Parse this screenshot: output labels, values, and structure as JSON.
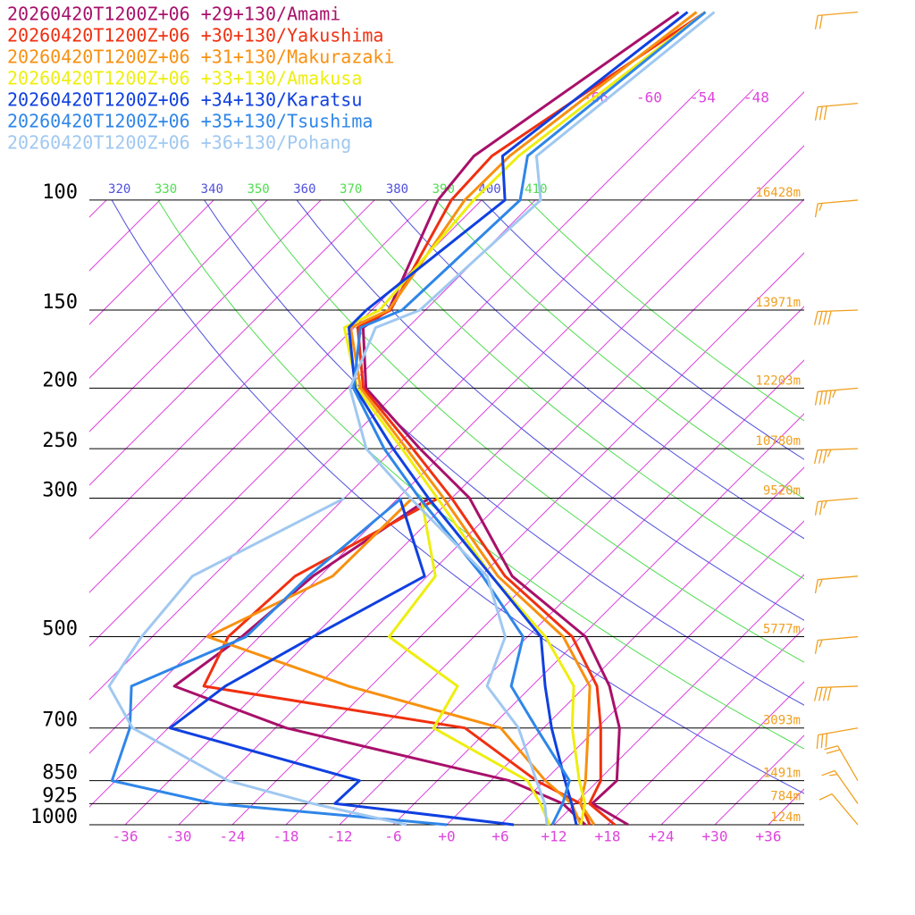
{
  "chart_data": {
    "type": "skewt",
    "pressure_ticks": [
      100,
      150,
      200,
      250,
      300,
      500,
      700,
      850,
      925,
      1000
    ],
    "height_labels": [
      "16428m",
      "13971m",
      "12203m",
      "10780m",
      "9520m",
      "5777m",
      "3093m",
      "1491m",
      "784m",
      "124m"
    ],
    "height_color": "#f0a020",
    "xticks": [
      -36,
      -30,
      -24,
      -18,
      -12,
      -6,
      {
        "value": 0,
        "label": "+0"
      },
      {
        "value": 6,
        "label": "+6"
      },
      {
        "value": 12,
        "label": "+12"
      },
      {
        "value": 18,
        "label": "+18"
      },
      {
        "value": 24,
        "label": "+24"
      },
      {
        "value": 30,
        "label": "+30"
      },
      {
        "value": 36,
        "label": "+36"
      }
    ],
    "top_isotherm_ticks": [
      -66,
      -60,
      -54,
      -48
    ],
    "isotherm_color": "#dd44dd",
    "isotherms": [
      -108,
      -102,
      -96,
      -90,
      -84,
      -78,
      -72,
      -66,
      -60,
      -54,
      -48,
      -42,
      -36,
      -30,
      -24,
      -18,
      -12,
      -6,
      0,
      6,
      12,
      18,
      24,
      30,
      36
    ],
    "theta_lines": [
      {
        "color": "#5050dd",
        "values": [
          320,
          340,
          360,
          380,
          400
        ]
      },
      {
        "color": "#50dd50",
        "values": [
          330,
          350,
          370,
          390,
          410
        ]
      }
    ],
    "levels": [
      1000,
      925,
      850,
      700,
      600,
      500,
      400,
      300,
      250,
      200,
      160,
      150,
      100,
      85,
      50
    ],
    "dewpoint_levels": [
      1000,
      925,
      850,
      700,
      600,
      500,
      400,
      300
    ],
    "series": [
      {
        "name": "20260420T1200Z+06 +29+130/Amami",
        "color": "#a8106a",
        "temperature": [
          20.3,
          13.9,
          14.1,
          8.5,
          2.7,
          -5.5,
          -20.5,
          -34,
          -45.1,
          -57.9,
          -65,
          -64.1,
          -70.9,
          -71.8,
          -65
        ],
        "dewpoint": [
          15.5,
          10.6,
          2.1,
          -28.8,
          -46,
          -44,
          -42.8,
          -38.5
        ]
      },
      {
        "name": "20260420T1200Z+06 +30+130/Yakushima",
        "color": "#f03010",
        "temperature": [
          18.8,
          13.6,
          12.3,
          6.4,
          1.3,
          -7,
          -21.3,
          -36,
          -45.9,
          -58.2,
          -65.6,
          -63.9,
          -69.4,
          -69.8,
          -62
        ],
        "dewpoint": [
          16,
          12.6,
          5.1,
          -8.8,
          -42.7,
          -45.5,
          -44.8,
          -37.5
        ]
      },
      {
        "name": "20260420T1200Z+06 +31+130/Makurazaki",
        "color": "#f89010",
        "temperature": [
          16.5,
          12.6,
          10.6,
          5,
          0.5,
          -8,
          -22.1,
          -36.9,
          -46.6,
          -58.5,
          -66.4,
          -64.1,
          -67.9,
          -67.8,
          -63
        ],
        "dewpoint": [
          15,
          11.6,
          6.1,
          -4.8,
          -26.5,
          -47.8,
          -40.6,
          -40.4
        ]
      },
      {
        "name": "20260420T1200Z+06 +33+130/Amakusa",
        "color": "#eeee10",
        "temperature": [
          15,
          13.1,
          9.9,
          3.2,
          -1.3,
          -10,
          -22.8,
          -37.6,
          -47.1,
          -58.9,
          -67.1,
          -65.1,
          -66.9,
          -66.8,
          -62
        ],
        "dewpoint": [
          11.5,
          8.1,
          4.1,
          -12.3,
          -14.3,
          -27.5,
          -29.1,
          -39.4
        ]
      },
      {
        "name": "20260420T1200Z+06 +34+130/Karatsu",
        "color": "#1040e0",
        "temperature": [
          14.5,
          11.6,
          8.3,
          0.9,
          -4.5,
          -10.5,
          -22.8,
          -38.6,
          -48.1,
          -59.1,
          -66.6,
          -66.6,
          -63.4,
          -68.6,
          -64
        ],
        "dewpoint": [
          7.5,
          -14.9,
          -14.7,
          -41.8,
          -40.3,
          -36,
          -30.3,
          -41.8
        ]
      },
      {
        "name": "20260420T1200Z+06 +35+130/Tsushima",
        "color": "#2f86e8",
        "temperature": [
          11.8,
          10.6,
          8.8,
          -0.8,
          -8.3,
          -12.5,
          -23.8,
          -39.6,
          -49.1,
          -59.3,
          -65.3,
          -62.6,
          -61.7,
          -65.8,
          -62
        ],
        "dewpoint": [
          0,
          -28.4,
          -42.4,
          -46.3,
          -50.8,
          -43.5,
          -43.3,
          -41.6
        ]
      },
      {
        "name": "20260420T1200Z+06 +36+130/Pohang",
        "color": "#a0c8f0",
        "temperature": [
          11.2,
          8.6,
          5.1,
          -2.8,
          -11,
          -14.5,
          -23.3,
          -40.6,
          -51.1,
          -59.7,
          -63.6,
          -60.6,
          -59.4,
          -64.8,
          -61
        ],
        "dewpoint": [
          -4.5,
          -17.4,
          -29.4,
          -46,
          -53.3,
          -55.2,
          -56.3,
          -48
        ]
      }
    ],
    "wind": {
      "color": "#f0a020",
      "pressure": [
        50,
        70,
        100,
        150,
        200,
        250,
        300,
        400,
        500,
        600,
        700,
        850,
        925,
        1000
      ],
      "speed": [
        20,
        30,
        15,
        40,
        45,
        35,
        25,
        15,
        15,
        40,
        30,
        20,
        15,
        10
      ],
      "direction": [
        265,
        265,
        265,
        268,
        265,
        268,
        265,
        265,
        265,
        268,
        260,
        330,
        325,
        320
      ]
    }
  }
}
